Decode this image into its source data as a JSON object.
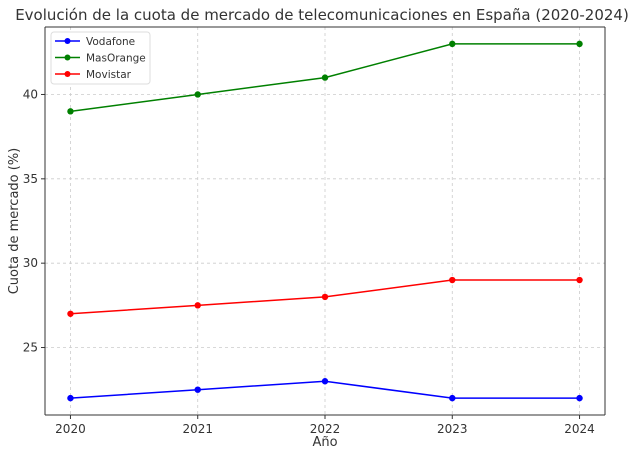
{
  "chart_data": {
    "type": "line",
    "title": "Evolución de la cuota de mercado de telecomunicaciones en España (2020-2024)",
    "xlabel": "Año",
    "ylabel": "Cuota de mercado (%)",
    "x": [
      2020,
      2021,
      2022,
      2023,
      2024
    ],
    "xticks": [
      "2020",
      "2021",
      "2022",
      "2023",
      "2024"
    ],
    "yticks": [
      25,
      30,
      35,
      40
    ],
    "xlim": [
      2019.8,
      2024.2
    ],
    "ylim": [
      21,
      44
    ],
    "grid": true,
    "legend_position": "top-left",
    "series": [
      {
        "name": "Vodafone",
        "color": "#0000ff",
        "values": [
          22,
          22.5,
          23,
          22,
          22
        ]
      },
      {
        "name": "MasOrange",
        "color": "#008000",
        "values": [
          39,
          40,
          41,
          43,
          43
        ]
      },
      {
        "name": "Movistar",
        "color": "#ff0000",
        "values": [
          27,
          27.5,
          28,
          29,
          29
        ]
      }
    ]
  }
}
